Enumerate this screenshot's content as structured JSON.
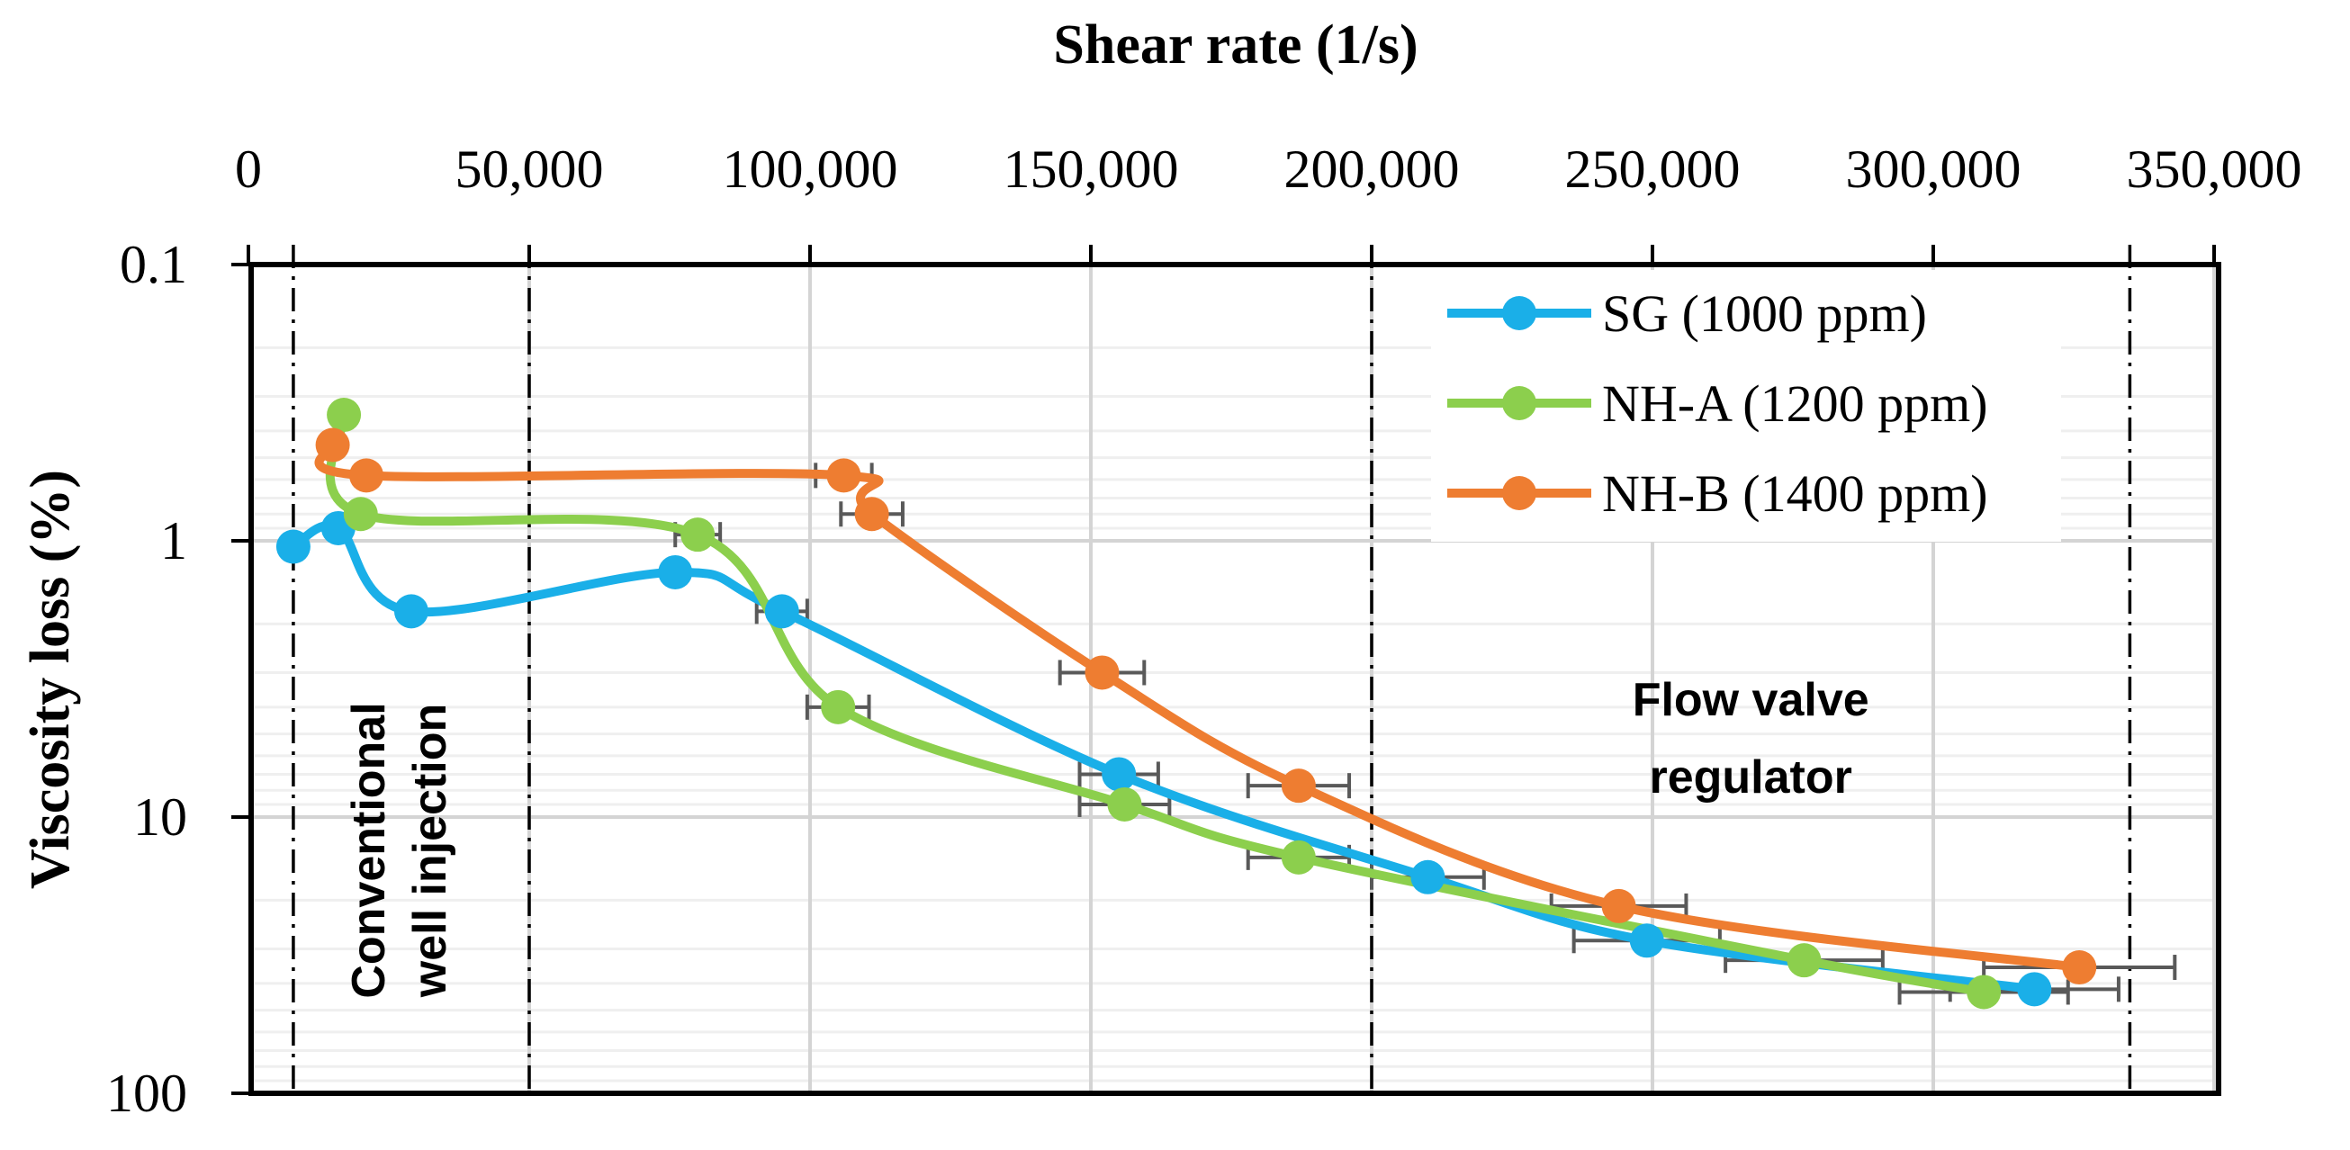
{
  "chart_data": {
    "type": "line",
    "title": "",
    "xlabel": "Shear rate (1/s)",
    "ylabel": "Viscosity loss (%)",
    "x_axis_position": "top",
    "y_axis_scale": "log",
    "y_axis_reversed": true,
    "xlim": [
      0,
      350000
    ],
    "ylim": [
      0.1,
      100
    ],
    "x_ticks": [
      0,
      50000,
      100000,
      150000,
      200000,
      250000,
      300000,
      350000
    ],
    "x_tick_labels": [
      "0",
      "50,000",
      "100,000",
      "150,000",
      "200,000",
      "250,000",
      "300,000",
      "350,000"
    ],
    "y_ticks": [
      0.1,
      1,
      10,
      100
    ],
    "y_tick_labels": [
      "0.1",
      "1",
      "10",
      "100"
    ],
    "grid": true,
    "legend_position": "top-right",
    "series": [
      {
        "name": "SG (1000 ppm)",
        "color": "#1AAFE8",
        "points": [
          {
            "x": 8000,
            "y": 1.05
          },
          {
            "x": 16000,
            "y": 0.9
          },
          {
            "x": 29000,
            "y": 1.8
          },
          {
            "x": 76000,
            "y": 1.3
          },
          {
            "x": 95000,
            "y": 1.8,
            "x_err": 4500
          },
          {
            "x": 155000,
            "y": 7.0,
            "x_err": 7000
          },
          {
            "x": 210000,
            "y": 16.5,
            "x_err": 10000
          },
          {
            "x": 249000,
            "y": 28.0,
            "x_err": 13000
          },
          {
            "x": 318000,
            "y": 42.0,
            "x_err": 15000
          }
        ]
      },
      {
        "name": "NH-A (1200 ppm)",
        "color": "#8CCF4D",
        "points": [
          {
            "x": 17000,
            "y": 0.35
          },
          {
            "x": 20000,
            "y": 0.8
          },
          {
            "x": 80000,
            "y": 0.95,
            "x_err": 4000
          },
          {
            "x": 105000,
            "y": 4.0,
            "x_err": 5500
          },
          {
            "x": 156000,
            "y": 9.0,
            "x_err": 8000
          },
          {
            "x": 187000,
            "y": 14.0,
            "x_err": 9000
          },
          {
            "x": 277000,
            "y": 33.0,
            "x_err": 14000
          },
          {
            "x": 309000,
            "y": 43.0,
            "x_err": 15000
          }
        ]
      },
      {
        "name": "NH-B (1400 ppm)",
        "color": "#EE7D31",
        "points": [
          {
            "x": 15000,
            "y": 0.45
          },
          {
            "x": 21000,
            "y": 0.58
          },
          {
            "x": 106000,
            "y": 0.58,
            "x_err": 5000
          },
          {
            "x": 111000,
            "y": 0.8,
            "x_err": 5500
          },
          {
            "x": 152000,
            "y": 3.0,
            "x_err": 7500
          },
          {
            "x": 187000,
            "y": 7.7,
            "x_err": 9000
          },
          {
            "x": 244000,
            "y": 21.0,
            "x_err": 12000
          },
          {
            "x": 326000,
            "y": 35.0,
            "x_err": 17000
          }
        ]
      }
    ],
    "reference_lines_x": [
      8000,
      50000,
      200000,
      335000
    ],
    "annotations": [
      {
        "text_lines": [
          "Conventional",
          "well injection"
        ],
        "orientation": "vertical",
        "x_range": [
          8000,
          50000
        ]
      },
      {
        "text_lines": [
          "Flow valve",
          "regulator"
        ],
        "orientation": "horizontal",
        "x_range": [
          200000,
          335000
        ]
      }
    ]
  }
}
